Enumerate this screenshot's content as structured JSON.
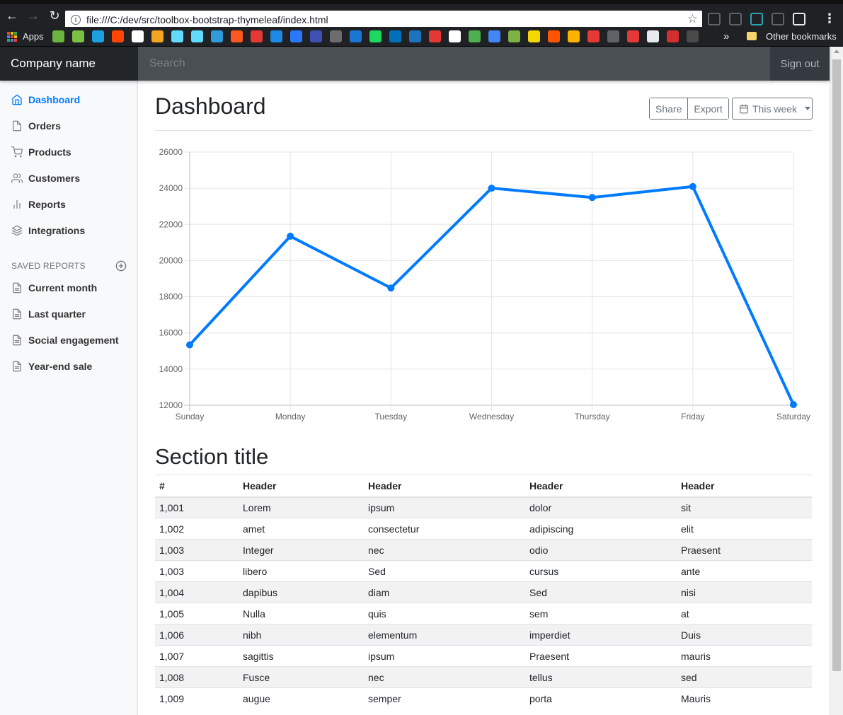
{
  "browser": {
    "url": "file:///C:/dev/src/toolbox-bootstrap-thymeleaf/index.html",
    "apps_label": "Apps",
    "other_bookmarks": "Other bookmarks",
    "more_label": "»",
    "ext_colors": [
      "#5f6368",
      "#5f6368",
      "#2aa3b3",
      "#5f6368",
      "#e8eaed"
    ],
    "bookmark_colors": [
      "#6cb33f",
      "#7ac143",
      "#1ba1e2",
      "#ff4500",
      "#ffffff",
      "#f4a522",
      "#61dafb",
      "#61dafb",
      "#2f9bdb",
      "#ff5722",
      "#e53935",
      "#1e88e5",
      "#2979ff",
      "#3f51b5",
      "#6d6d6d",
      "#1976d2",
      "#1ed760",
      "#0070ba",
      "#1e73be",
      "#e53935",
      "#ffffff",
      "#4caf50",
      "#4285f4",
      "#7cb342",
      "#f5d700",
      "#ff5500",
      "#ffb300",
      "#e53935",
      "#5f6368",
      "#e53935",
      "#e8eaed",
      "#d32f2f",
      "#4a4a4a"
    ]
  },
  "navbar": {
    "brand": "Company name",
    "search_placeholder": "Search",
    "signout": "Sign out"
  },
  "sidebar": {
    "items": [
      {
        "label": "Dashboard",
        "icon": "home-icon",
        "active": true
      },
      {
        "label": "Orders",
        "icon": "file-icon"
      },
      {
        "label": "Products",
        "icon": "shopping-cart-icon"
      },
      {
        "label": "Customers",
        "icon": "users-icon"
      },
      {
        "label": "Reports",
        "icon": "bar-chart-icon"
      },
      {
        "label": "Integrations",
        "icon": "layers-icon"
      }
    ],
    "saved_heading": "Saved reports",
    "saved_items": [
      {
        "label": "Current month",
        "icon": "file-text-icon"
      },
      {
        "label": "Last quarter",
        "icon": "file-text-icon"
      },
      {
        "label": "Social engagement",
        "icon": "file-text-icon"
      },
      {
        "label": "Year-end sale",
        "icon": "file-text-icon"
      }
    ]
  },
  "main": {
    "title": "Dashboard",
    "share": "Share",
    "export": "Export",
    "period": "This week",
    "section_title": "Section title",
    "table": {
      "headers": [
        "#",
        "Header",
        "Header",
        "Header",
        "Header"
      ],
      "rows": [
        [
          "1,001",
          "Lorem",
          "ipsum",
          "dolor",
          "sit"
        ],
        [
          "1,002",
          "amet",
          "consectetur",
          "adipiscing",
          "elit"
        ],
        [
          "1,003",
          "Integer",
          "nec",
          "odio",
          "Praesent"
        ],
        [
          "1,003",
          "libero",
          "Sed",
          "cursus",
          "ante"
        ],
        [
          "1,004",
          "dapibus",
          "diam",
          "Sed",
          "nisi"
        ],
        [
          "1,005",
          "Nulla",
          "quis",
          "sem",
          "at"
        ],
        [
          "1,006",
          "nibh",
          "elementum",
          "imperdiet",
          "Duis"
        ],
        [
          "1,007",
          "sagittis",
          "ipsum",
          "Praesent",
          "mauris"
        ],
        [
          "1,008",
          "Fusce",
          "nec",
          "tellus",
          "sed"
        ],
        [
          "1,009",
          "augue",
          "semper",
          "porta",
          "Mauris"
        ]
      ]
    }
  },
  "chart_data": {
    "type": "line",
    "categories": [
      "Sunday",
      "Monday",
      "Tuesday",
      "Wednesday",
      "Thursday",
      "Friday",
      "Saturday"
    ],
    "values": [
      15339,
      21345,
      18483,
      24003,
      23489,
      24092,
      12034
    ],
    "ylim": [
      12000,
      26000
    ],
    "yticks": [
      "12000",
      "14000",
      "16000",
      "18000",
      "20000",
      "22000",
      "24000",
      "26000"
    ],
    "grid": true,
    "legend": "none",
    "color": "#007bff"
  }
}
